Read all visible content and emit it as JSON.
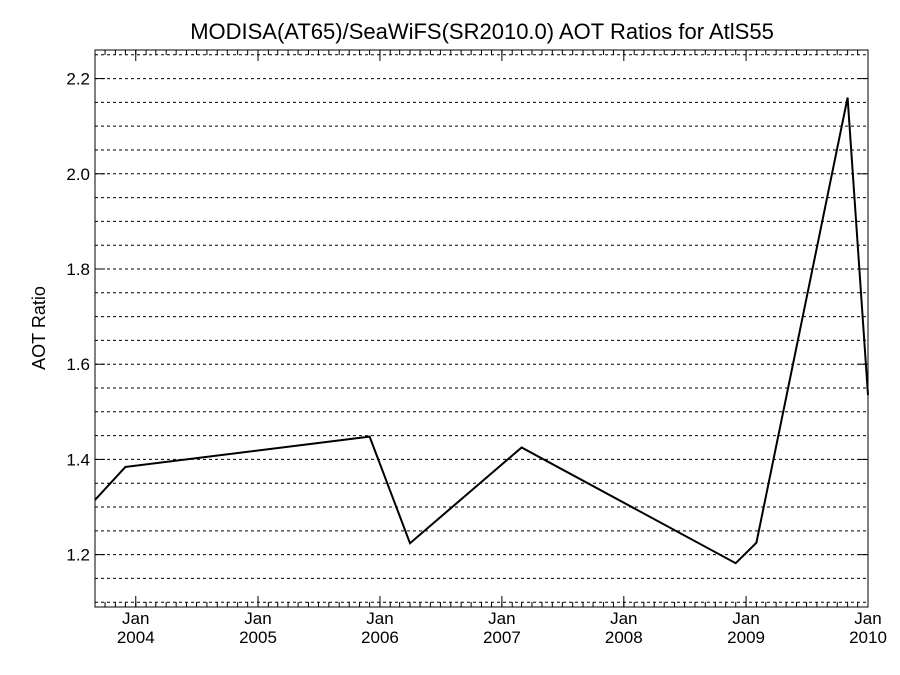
{
  "chart_data": {
    "type": "line",
    "title": "MODISA(AT65)/SeaWiFS(SR2010.0)  AOT Ratios for AtlS55",
    "xlabel": "",
    "ylabel": "AOT Ratio",
    "xlim": [
      "2003-09-01",
      "2010-01-01"
    ],
    "ylim": [
      1.09,
      2.26
    ],
    "y_ticks": [
      {
        "value": 1.2,
        "label": "1.2"
      },
      {
        "value": 1.4,
        "label": "1.4"
      },
      {
        "value": 1.6,
        "label": "1.6"
      },
      {
        "value": 1.8,
        "label": "1.8"
      },
      {
        "value": 2.0,
        "label": "2.0"
      },
      {
        "value": 2.2,
        "label": "2.2"
      }
    ],
    "y_minor_step": 0.05,
    "x_ticks": [
      {
        "date": "2004-01-01",
        "month": "Jan",
        "year": "2004"
      },
      {
        "date": "2005-01-01",
        "month": "Jan",
        "year": "2005"
      },
      {
        "date": "2006-01-01",
        "month": "Jan",
        "year": "2006"
      },
      {
        "date": "2007-01-01",
        "month": "Jan",
        "year": "2007"
      },
      {
        "date": "2008-01-01",
        "month": "Jan",
        "year": "2008"
      },
      {
        "date": "2009-01-01",
        "month": "Jan",
        "year": "2009"
      },
      {
        "date": "2010-01-01",
        "month": "Jan",
        "year": "2010"
      }
    ],
    "grid": true,
    "series": [
      {
        "points": [
          {
            "x": "2003-09-01",
            "y": 1.315
          },
          {
            "x": "2003-12-01",
            "y": 1.384
          },
          {
            "x": "2005-12-01",
            "y": 1.448
          },
          {
            "x": "2006-04-01",
            "y": 1.224
          },
          {
            "x": "2007-03-01",
            "y": 1.425
          },
          {
            "x": "2008-12-01",
            "y": 1.182
          },
          {
            "x": "2009-02-01",
            "y": 1.225
          },
          {
            "x": "2009-11-01",
            "y": 2.16
          },
          {
            "x": "2010-01-01",
            "y": 1.535
          }
        ]
      }
    ]
  }
}
